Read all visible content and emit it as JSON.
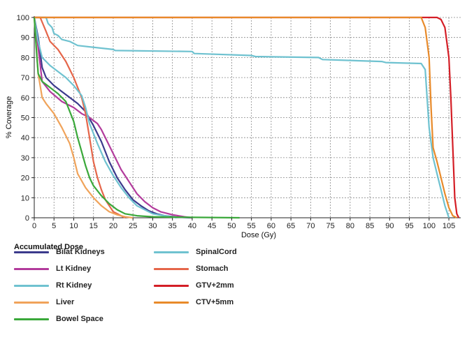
{
  "chart_data": {
    "type": "line",
    "title": "",
    "xlabel": "Dose (Gy)",
    "ylabel": "% Coverage",
    "xlim": [
      0,
      108
    ],
    "ylim": [
      0,
      100
    ],
    "xticks": [
      0,
      5,
      10,
      15,
      20,
      25,
      30,
      35,
      40,
      45,
      50,
      55,
      60,
      65,
      70,
      75,
      80,
      85,
      90,
      95,
      100,
      105
    ],
    "yticks": [
      0,
      10,
      20,
      30,
      40,
      50,
      60,
      70,
      80,
      90,
      100
    ],
    "grid": true,
    "legend_title": "Accumulated Dose",
    "legend_placement": "bottom",
    "series": [
      {
        "name": "Bilat Kidneys",
        "color": "#3b3a8c",
        "points": [
          [
            0,
            100
          ],
          [
            1,
            90
          ],
          [
            2,
            75
          ],
          [
            3,
            70
          ],
          [
            5,
            66
          ],
          [
            7,
            63
          ],
          [
            9,
            60
          ],
          [
            11,
            57
          ],
          [
            13,
            53
          ],
          [
            15,
            46
          ],
          [
            17,
            38
          ],
          [
            19,
            28
          ],
          [
            21,
            20
          ],
          [
            23,
            14
          ],
          [
            25,
            9
          ],
          [
            27,
            6
          ],
          [
            29,
            3.5
          ],
          [
            31,
            2
          ],
          [
            33,
            1
          ],
          [
            36,
            0.3
          ],
          [
            40,
            0
          ]
        ]
      },
      {
        "name": "SpinalCord",
        "color": "#6fc2d0",
        "points": [
          [
            0,
            100
          ],
          [
            3,
            100
          ],
          [
            3.5,
            97
          ],
          [
            4.5,
            95
          ],
          [
            5,
            92
          ],
          [
            6,
            91
          ],
          [
            7,
            89
          ],
          [
            9,
            88
          ],
          [
            11,
            86
          ],
          [
            20,
            84
          ],
          [
            20.5,
            83.5
          ],
          [
            40,
            83
          ],
          [
            40.5,
            82
          ],
          [
            55,
            81
          ],
          [
            56,
            80.5
          ],
          [
            72,
            80
          ],
          [
            73,
            79
          ],
          [
            88,
            78
          ],
          [
            89,
            77.5
          ],
          [
            98,
            77
          ],
          [
            99,
            74
          ],
          [
            100,
            45
          ],
          [
            101,
            30
          ],
          [
            102,
            22
          ],
          [
            103,
            14
          ],
          [
            104,
            6
          ],
          [
            105,
            0
          ]
        ]
      },
      {
        "name": "Lt Kidney",
        "color": "#b23b9c",
        "points": [
          [
            0,
            100
          ],
          [
            1,
            85
          ],
          [
            2,
            68
          ],
          [
            4,
            63
          ],
          [
            7,
            58
          ],
          [
            10,
            55
          ],
          [
            12,
            52
          ],
          [
            14,
            50
          ],
          [
            16,
            47
          ],
          [
            17,
            44
          ],
          [
            18,
            40
          ],
          [
            20,
            32
          ],
          [
            22,
            24
          ],
          [
            24,
            18
          ],
          [
            26,
            12
          ],
          [
            28,
            8
          ],
          [
            30,
            5
          ],
          [
            32,
            3
          ],
          [
            35,
            1.5
          ],
          [
            38,
            0.5
          ],
          [
            40,
            0
          ]
        ]
      },
      {
        "name": "Stomach",
        "color": "#e5664a",
        "points": [
          [
            0,
            100
          ],
          [
            1.5,
            100
          ],
          [
            3,
            93
          ],
          [
            4,
            88
          ],
          [
            6,
            84
          ],
          [
            8,
            78
          ],
          [
            10,
            70
          ],
          [
            12,
            60
          ],
          [
            13,
            52
          ],
          [
            14,
            40
          ],
          [
            15,
            28
          ],
          [
            16,
            20
          ],
          [
            17,
            14
          ],
          [
            18,
            9
          ],
          [
            19,
            6
          ],
          [
            20,
            3
          ],
          [
            22,
            1
          ],
          [
            23,
            0
          ]
        ]
      },
      {
        "name": "Rt Kidney",
        "color": "#6fc2d0",
        "points": [
          [
            0,
            100
          ],
          [
            1,
            88
          ],
          [
            2,
            80
          ],
          [
            4,
            76
          ],
          [
            6,
            73
          ],
          [
            8,
            70
          ],
          [
            10,
            66
          ],
          [
            12,
            61
          ],
          [
            13,
            55
          ],
          [
            14,
            47
          ],
          [
            16,
            37
          ],
          [
            18,
            28
          ],
          [
            20,
            21
          ],
          [
            22,
            15
          ],
          [
            24,
            10
          ],
          [
            26,
            6
          ],
          [
            28,
            4
          ],
          [
            30,
            2
          ],
          [
            33,
            1
          ],
          [
            36,
            0
          ]
        ]
      },
      {
        "name": "GTV+2mm",
        "color": "#d41e26",
        "points": [
          [
            0,
            100
          ],
          [
            102,
            100
          ],
          [
            103,
            99
          ],
          [
            104,
            95
          ],
          [
            105,
            80
          ],
          [
            105.5,
            60
          ],
          [
            106,
            35
          ],
          [
            106.5,
            10
          ],
          [
            107,
            2
          ],
          [
            107.5,
            0
          ]
        ]
      },
      {
        "name": "Liver",
        "color": "#f0a35a",
        "points": [
          [
            0,
            100
          ],
          [
            1,
            72
          ],
          [
            2,
            60
          ],
          [
            3,
            57
          ],
          [
            5,
            52
          ],
          [
            7,
            45
          ],
          [
            9,
            37
          ],
          [
            10,
            30
          ],
          [
            11,
            22
          ],
          [
            13,
            15
          ],
          [
            15,
            10
          ],
          [
            17,
            6
          ],
          [
            19,
            3
          ],
          [
            21,
            1.5
          ],
          [
            23,
            0.5
          ],
          [
            25,
            0
          ]
        ]
      },
      {
        "name": "CTV+5mm",
        "color": "#e88a2a",
        "points": [
          [
            0,
            100
          ],
          [
            98,
            100
          ],
          [
            99,
            95
          ],
          [
            100,
            80
          ],
          [
            100.5,
            55
          ],
          [
            101,
            35
          ],
          [
            102,
            28
          ],
          [
            103,
            20
          ],
          [
            104,
            12
          ],
          [
            105,
            5
          ],
          [
            106,
            1
          ],
          [
            107,
            0
          ]
        ]
      },
      {
        "name": "Bowel Space",
        "color": "#3aa83a",
        "points": [
          [
            0,
            100
          ],
          [
            0.5,
            85
          ],
          [
            1,
            72
          ],
          [
            2,
            68
          ],
          [
            4,
            65
          ],
          [
            6,
            62
          ],
          [
            8,
            58
          ],
          [
            10,
            48
          ],
          [
            11,
            40
          ],
          [
            12,
            33
          ],
          [
            13,
            26
          ],
          [
            14,
            20
          ],
          [
            15,
            16
          ],
          [
            17,
            11
          ],
          [
            19,
            7
          ],
          [
            21,
            4
          ],
          [
            23,
            2
          ],
          [
            26,
            1
          ],
          [
            30,
            0.5
          ],
          [
            40,
            0.2
          ],
          [
            52,
            0
          ]
        ]
      }
    ]
  }
}
